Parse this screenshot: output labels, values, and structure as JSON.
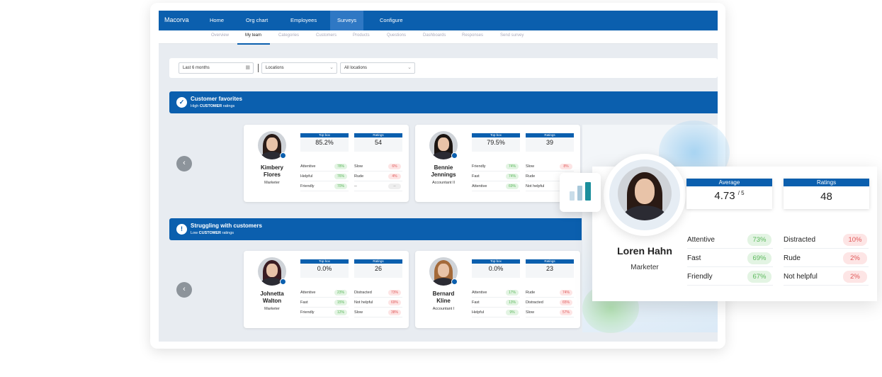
{
  "nav": {
    "brand": "Macorva",
    "items": [
      "Home",
      "Org chart",
      "Employees",
      "Surveys",
      "Configure"
    ]
  },
  "subnav": [
    "Overview",
    "My team",
    "Categories",
    "Customers",
    "Products",
    "Questions",
    "Dashboards",
    "Responses",
    "Send survey"
  ],
  "filters": [
    "Last 6 months",
    "Locations",
    "All locations"
  ],
  "sections": [
    {
      "title": "Customer favorites",
      "subtitle_prefix": "High",
      "subtitle_bold": "CUSTOMER",
      "subtitle_suffix": "ratings",
      "cards": [
        {
          "name": "Kimbery Flores",
          "role": "Marketer",
          "top_box_label": "Top box",
          "top_box": "85.2%",
          "ratings_label": "Ratings",
          "ratings": "54",
          "positives": [
            {
              "label": "Attentive",
              "value": "78%"
            },
            {
              "label": "Helpful",
              "value": "76%"
            },
            {
              "label": "Friendly",
              "value": "70%"
            }
          ],
          "negatives": [
            {
              "label": "Slow",
              "value": "6%"
            },
            {
              "label": "Rude",
              "value": "4%"
            },
            {
              "label": "--",
              "value": "--"
            }
          ]
        },
        {
          "name": "Bennie Jennings",
          "role": "Accountant II",
          "top_box_label": "Top box",
          "top_box": "79.5%",
          "ratings_label": "Ratings",
          "ratings": "39",
          "positives": [
            {
              "label": "Friendly",
              "value": "74%"
            },
            {
              "label": "Fast",
              "value": "74%"
            },
            {
              "label": "Attentive",
              "value": "69%"
            }
          ],
          "negatives": [
            {
              "label": "Slow",
              "value": "8%"
            },
            {
              "label": "Rude"
            },
            {
              "label": "Not helpful"
            }
          ]
        }
      ]
    },
    {
      "title": "Struggling with customers",
      "subtitle_prefix": "Low",
      "subtitle_bold": "CUSTOMER",
      "subtitle_suffix": "ratings",
      "cards": [
        {
          "name": "Johnetta Walton",
          "role": "Marketer",
          "top_box_label": "Top box",
          "top_box": "0.0%",
          "ratings_label": "Ratings",
          "ratings": "26",
          "positives": [
            {
              "label": "Attentive",
              "value": "23%"
            },
            {
              "label": "Fast",
              "value": "15%"
            },
            {
              "label": "Friendly",
              "value": "12%"
            }
          ],
          "negatives": [
            {
              "label": "Distracted",
              "value": "73%"
            },
            {
              "label": "Not helpful",
              "value": "69%"
            },
            {
              "label": "Slow",
              "value": "38%"
            }
          ]
        },
        {
          "name": "Bernard Kline",
          "role": "Accountant I",
          "top_box_label": "Top box",
          "top_box": "0.0%",
          "ratings_label": "Ratings",
          "ratings": "23",
          "positives": [
            {
              "label": "Attentive",
              "value": "17%"
            },
            {
              "label": "Fast",
              "value": "13%"
            },
            {
              "label": "Helpful",
              "value": "9%"
            }
          ],
          "negatives": [
            {
              "label": "Rude",
              "value": "74%"
            },
            {
              "label": "Distracted",
              "value": "65%"
            },
            {
              "label": "Slow",
              "value": "57%"
            }
          ]
        }
      ]
    }
  ],
  "profile": {
    "name": "Loren Hahn",
    "role": "Marketer",
    "average_label": "Average",
    "average": "4.73",
    "average_suffix": "/ 5",
    "ratings_label": "Ratings",
    "ratings": "48",
    "positives": [
      {
        "label": "Attentive",
        "value": "73%"
      },
      {
        "label": "Fast",
        "value": "69%"
      },
      {
        "label": "Friendly",
        "value": "67%"
      }
    ],
    "negatives": [
      {
        "label": "Distracted",
        "value": "10%"
      },
      {
        "label": "Rude",
        "value": "2%"
      },
      {
        "label": "Not helpful",
        "value": "2%"
      }
    ]
  }
}
